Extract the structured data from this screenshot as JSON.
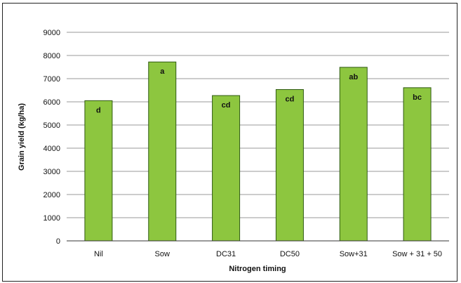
{
  "chart_data": {
    "type": "bar",
    "title": "",
    "xlabel": "Nitrogen timing",
    "ylabel": "Grain yield (kg/ha)",
    "ylim": [
      0,
      9000
    ],
    "yticks": [
      0,
      1000,
      2000,
      3000,
      4000,
      5000,
      6000,
      7000,
      8000,
      9000
    ],
    "grid": true,
    "categories": [
      "Nil",
      "Sow",
      "DC31",
      "DC50",
      "Sow+31",
      "Sow + 31 + 50"
    ],
    "values": [
      6050,
      7720,
      6270,
      6530,
      7490,
      6610
    ],
    "letters": [
      "d",
      "a",
      "cd",
      "cd",
      "ab",
      "bc"
    ],
    "bar_color": "#8dc63f",
    "bar_edge_color": "#2f5a12"
  }
}
